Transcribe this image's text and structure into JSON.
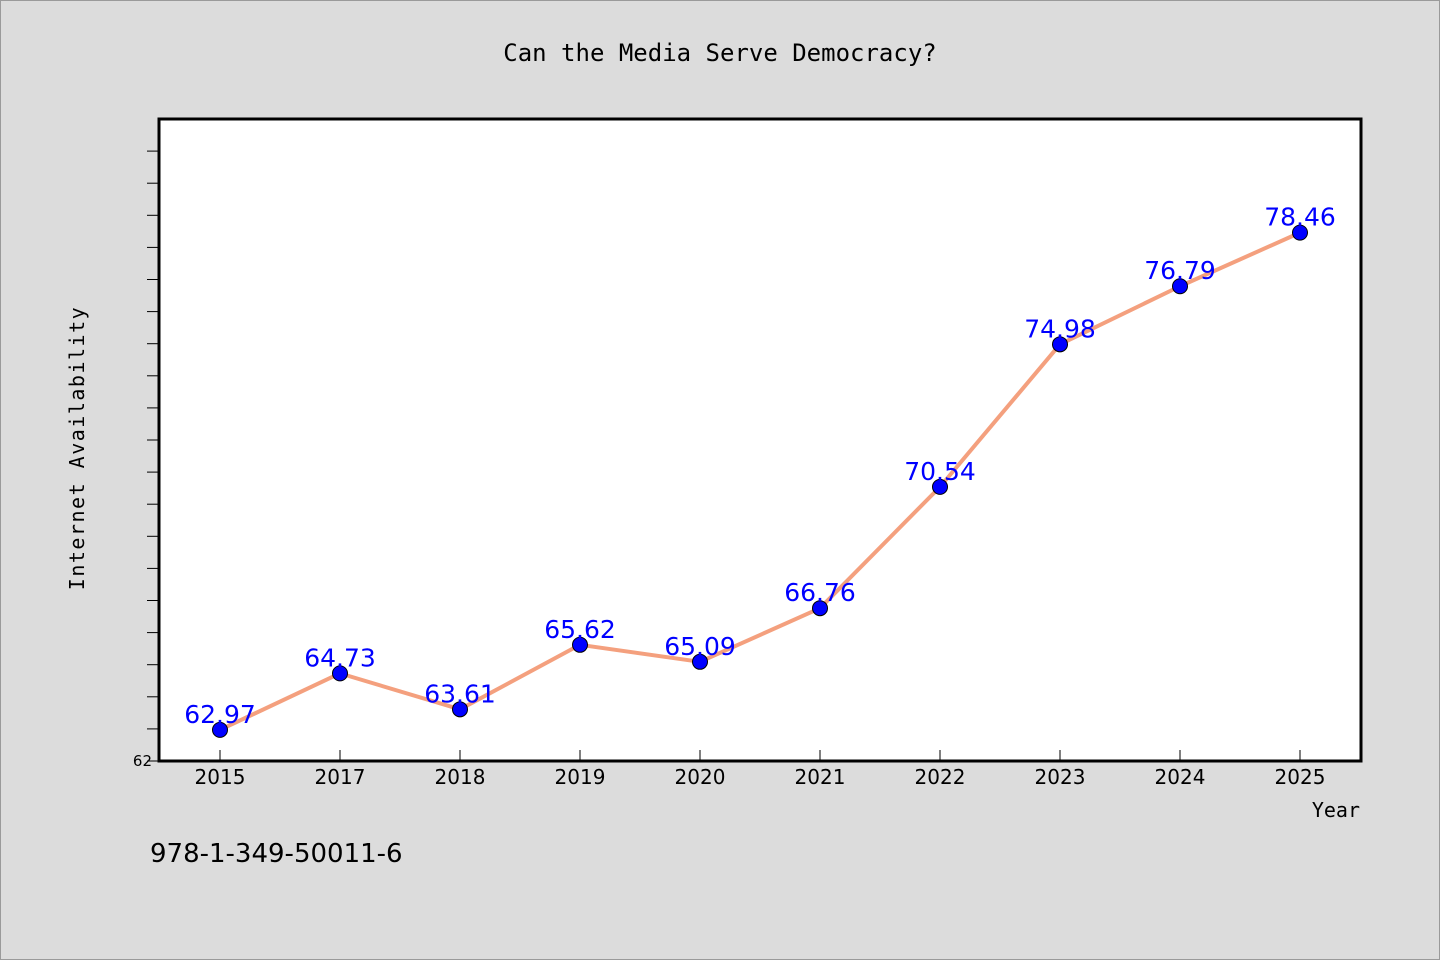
{
  "chart_data": {
    "type": "line",
    "title": "Can the Media Serve Democracy?",
    "xlabel": "Year",
    "ylabel": "Internet Availability",
    "categories": [
      "2015",
      "2017",
      "2018",
      "2019",
      "2020",
      "2021",
      "2022",
      "2023",
      "2024",
      "2025"
    ],
    "series": [
      {
        "values": [
          62.97,
          64.73,
          63.61,
          65.62,
          65.09,
          66.76,
          70.54,
          74.98,
          76.79,
          78.46
        ],
        "data_labels": [
          "62.97",
          "64.73",
          "63.61",
          "65.62",
          "65.09",
          "66.76",
          "70.54",
          "74.98",
          "76.79",
          "78.46"
        ],
        "line_color": "#f4a07e",
        "marker_color": "#0000ff"
      }
    ],
    "ylim": [
      62,
      82
    ],
    "y_tick_labels": [
      "62"
    ],
    "grid": false,
    "legend": "none"
  },
  "footnote": "978-1-349-50011-6",
  "colors": {
    "background": "#dcdcdc",
    "plot_background": "#ffffff",
    "label_color": "#0000ff"
  }
}
